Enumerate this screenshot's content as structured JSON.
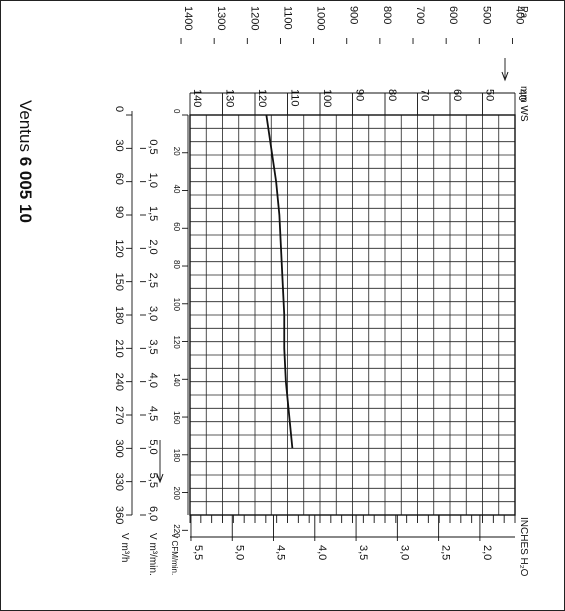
{
  "chart_data": {
    "type": "line",
    "title": {
      "light": "Ventus ",
      "bold": "6 005 10"
    },
    "xlabel": "V m³/h",
    "x_axes": [
      {
        "unit": "V m³/h",
        "min": 0,
        "max": 360,
        "ticks": [
          0,
          30,
          60,
          90,
          120,
          150,
          180,
          210,
          240,
          270,
          300,
          330,
          360
        ]
      },
      {
        "unit": "V m³/min.",
        "ticks": [
          "0,5",
          "1,0",
          "1,5",
          "2,0",
          "2,5",
          "3,0",
          "3,5",
          "4,0",
          "4,5",
          "5,0",
          "5,5",
          "6,0"
        ],
        "tick_values": [
          0.5,
          1.0,
          1.5,
          2.0,
          2.5,
          3.0,
          3.5,
          4.0,
          4.5,
          5.0,
          5.5,
          6.0
        ]
      },
      {
        "unit": "V CFM/min.",
        "ticks": [
          0,
          20,
          40,
          60,
          80,
          100,
          120,
          140,
          160,
          180,
          200,
          220
        ]
      }
    ],
    "y_axes": [
      {
        "unit": "mm WS",
        "min": 40,
        "max": 140,
        "ticks": [
          40,
          50,
          60,
          70,
          80,
          90,
          100,
          110,
          120,
          130,
          140
        ]
      },
      {
        "unit": "Pa",
        "ticks": [
          400,
          500,
          600,
          700,
          800,
          900,
          1000,
          1100,
          1200,
          1300,
          1400
        ]
      },
      {
        "unit": "INCHES H₂O",
        "ticks": [
          "2,0",
          "2,5",
          "3,0",
          "3,5",
          "4,0",
          "4,5",
          "5,0",
          "5,5"
        ],
        "tick_values": [
          2.0,
          2.5,
          3.0,
          3.5,
          4.0,
          4.5,
          5.0,
          5.5
        ]
      }
    ],
    "series": [
      {
        "x": [
          0,
          30,
          60,
          90,
          120,
          150,
          180,
          210,
          240,
          270,
          300
        ],
        "y": [
          116.5,
          115.0,
          113.5,
          112.5,
          112.0,
          111.5,
          111.0,
          111.0,
          110.5,
          109.5,
          108.5
        ]
      }
    ],
    "grid": true
  }
}
